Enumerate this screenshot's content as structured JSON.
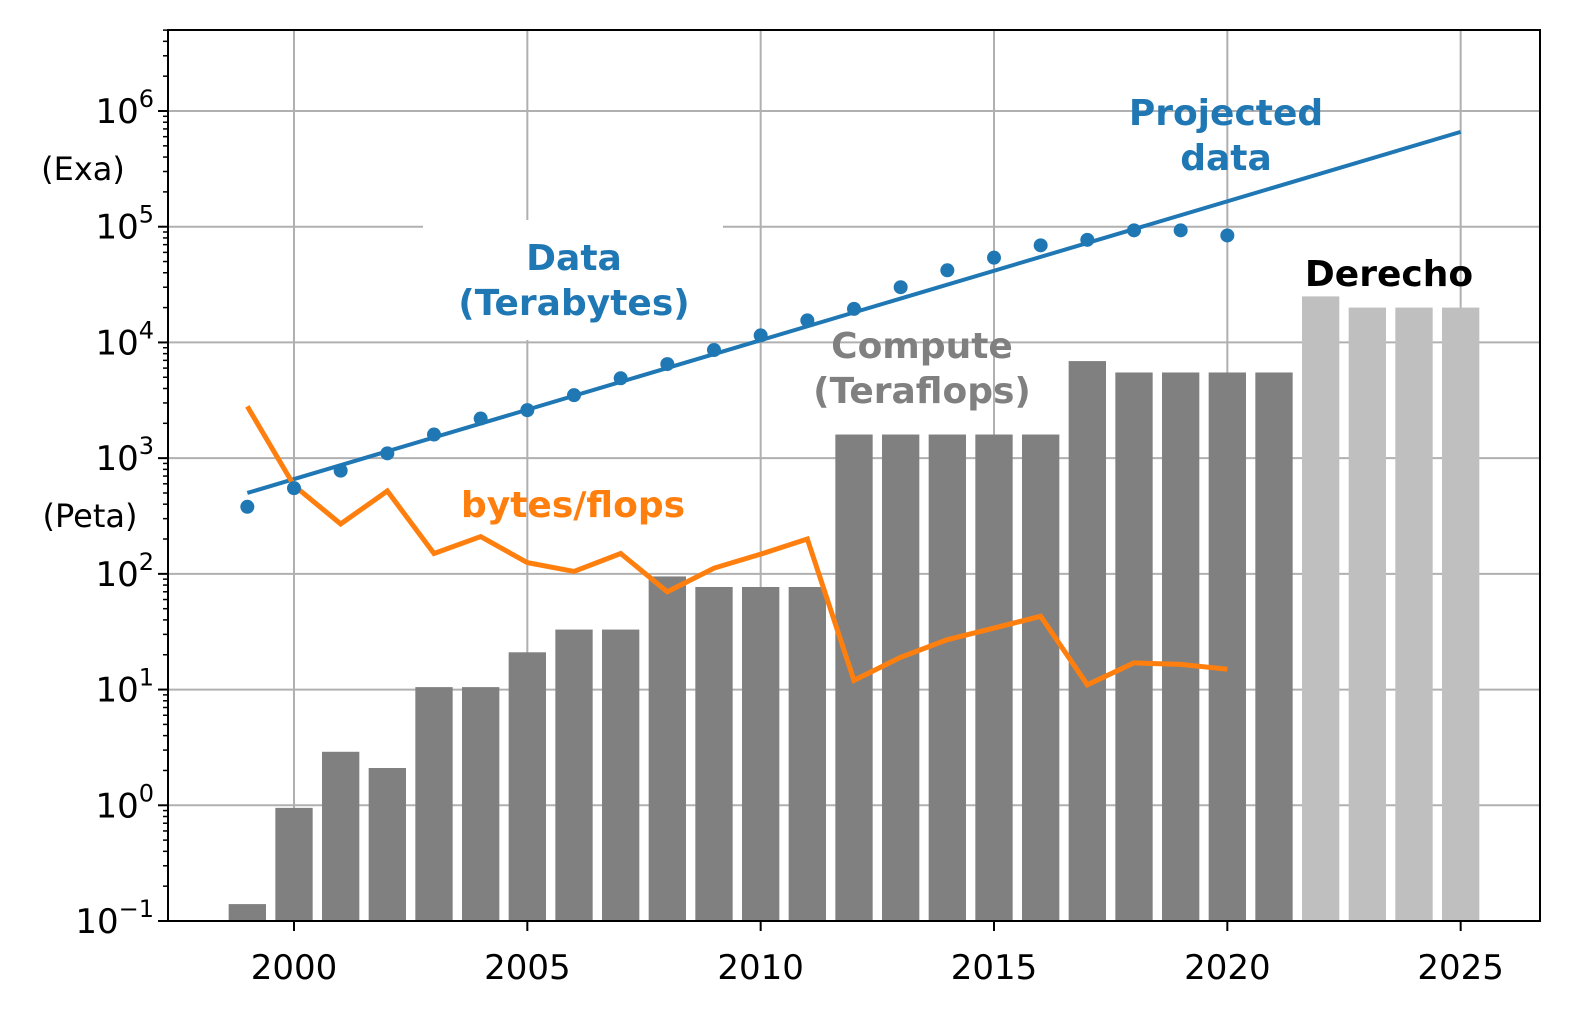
{
  "chart_data": {
    "type": "bar",
    "x_range": [
      1997.3,
      2026.7
    ],
    "y_scale": "log",
    "y_range_exp": [
      -1,
      6.7
    ],
    "grid": true,
    "x_ticks": [
      "2000",
      "2005",
      "2010",
      "2015",
      "2020",
      "2025"
    ],
    "y_ticks": [
      {
        "base": "10",
        "exp": "−1"
      },
      {
        "base": "10",
        "exp": "0"
      },
      {
        "base": "10",
        "exp": "1"
      },
      {
        "base": "10",
        "exp": "2"
      },
      {
        "base": "10",
        "exp": "3"
      },
      {
        "base": "10",
        "exp": "4"
      },
      {
        "base": "10",
        "exp": "5"
      },
      {
        "base": "10",
        "exp": "6"
      }
    ],
    "y_side_labels": {
      "exa": "(Exa)",
      "peta": "(Peta)"
    },
    "compute_series": {
      "label_line1": "Compute",
      "label_line2": "(Teraflops)",
      "color": "#808080",
      "x": [
        1999,
        2000,
        2001,
        2002,
        2003,
        2004,
        2005,
        2006,
        2007,
        2008,
        2009,
        2010,
        2011,
        2012,
        2013,
        2014,
        2015,
        2016,
        2017,
        2018,
        2019,
        2020,
        2021
      ],
      "values": [
        0.14,
        0.95,
        2.9,
        2.1,
        10.5,
        10.5,
        21,
        33,
        33,
        95,
        77,
        77,
        77,
        1600,
        1600,
        1600,
        1600,
        1600,
        6900,
        5500,
        5500,
        5500,
        5500
      ]
    },
    "derecho_series": {
      "label": "Derecho",
      "color": "#bfbfbf",
      "x": [
        2022,
        2023,
        2024,
        2025
      ],
      "values": [
        25000,
        20000,
        20000,
        20000
      ]
    },
    "data_series": {
      "label_line1": "Data",
      "label_line2": "(Terabytes)",
      "color": "#1f77b4",
      "x": [
        1999,
        2000,
        2001,
        2002,
        2003,
        2004,
        2005,
        2006,
        2007,
        2008,
        2009,
        2010,
        2011,
        2012,
        2013,
        2014,
        2015,
        2016,
        2017,
        2018,
        2019,
        2020
      ],
      "values": [
        380,
        550,
        780,
        1100,
        1600,
        2200,
        2600,
        3500,
        4900,
        6500,
        8600,
        11500,
        15500,
        19500,
        30000,
        42000,
        54000,
        69000,
        77000,
        93000,
        93000,
        84000
      ]
    },
    "projected_series": {
      "label_line1": "Projected",
      "label_line2": "data",
      "color": "#1f77b4",
      "x": [
        1999,
        2025
      ],
      "values": [
        500,
        660000
      ]
    },
    "ratio_series": {
      "label": "bytes/flops",
      "color": "#ff7f0e",
      "x": [
        1999,
        2000,
        2001,
        2002,
        2003,
        2004,
        2005,
        2006,
        2007,
        2008,
        2009,
        2010,
        2011,
        2012,
        2013,
        2014,
        2015,
        2016,
        2017,
        2018,
        2019,
        2020
      ],
      "values": [
        2800,
        580,
        270,
        520,
        150,
        210,
        125,
        105,
        150,
        70,
        112,
        148,
        200,
        12,
        19,
        27,
        34,
        43,
        11,
        17,
        16.5,
        15
      ]
    }
  }
}
